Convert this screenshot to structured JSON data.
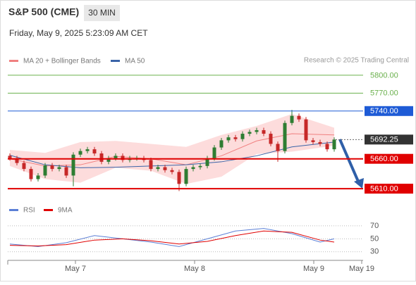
{
  "chart_data": {
    "type": "candlestick",
    "title": "S&P 500 (CME)",
    "interval": "30 MIN",
    "subtitle": "Friday, May 9, 2025 5:23:09 AM CET",
    "credit": "Research © 2025 Trading Central",
    "xlim": [
      -0.3,
      50.1
    ],
    "xticks": [
      {
        "value": 9.3,
        "label": "May 7"
      },
      {
        "value": 26.2,
        "label": "May 8"
      },
      {
        "value": 43.1,
        "label": "May 9"
      },
      {
        "value": 49.9,
        "label": "May 19"
      }
    ],
    "ylim": [
      5596,
      5814
    ],
    "up_color": "#2e7d32",
    "down_color": "#c62828",
    "candles": {
      "open": [
        5665,
        5661,
        5653,
        5643,
        5626,
        5632,
        5649,
        5643,
        5646,
        5632,
        5667,
        5673,
        5676,
        5669,
        5655,
        5661,
        5665,
        5658,
        5661,
        5661,
        5658,
        5643,
        5646,
        5641,
        5638,
        5618,
        5643,
        5646,
        5648,
        5661,
        5679,
        5691,
        5696,
        5693,
        5702,
        5705,
        5708,
        5702,
        5685,
        5673,
        5720,
        5732,
        5726,
        5691,
        5688,
        5685,
        5676
      ],
      "high": [
        5669,
        5665,
        5657,
        5647,
        5636,
        5653,
        5653,
        5650,
        5650,
        5671,
        5677,
        5680,
        5680,
        5673,
        5665,
        5669,
        5669,
        5665,
        5665,
        5665,
        5662,
        5650,
        5650,
        5645,
        5642,
        5647,
        5650,
        5652,
        5665,
        5683,
        5695,
        5700,
        5700,
        5706,
        5709,
        5712,
        5712,
        5706,
        5689,
        5724,
        5742,
        5736,
        5730,
        5695,
        5692,
        5689,
        5696
      ],
      "low": [
        5657,
        5649,
        5639,
        5622,
        5622,
        5628,
        5639,
        5639,
        5628,
        5614,
        5663,
        5669,
        5665,
        5651,
        5651,
        5657,
        5654,
        5654,
        5657,
        5654,
        5639,
        5639,
        5637,
        5634,
        5606,
        5614,
        5639,
        5642,
        5644,
        5657,
        5675,
        5687,
        5689,
        5689,
        5698,
        5701,
        5698,
        5681,
        5655,
        5669,
        5716,
        5722,
        5687,
        5684,
        5681,
        5672,
        5672
      ],
      "close": [
        5661,
        5653,
        5643,
        5626,
        5632,
        5649,
        5643,
        5646,
        5632,
        5667,
        5673,
        5676,
        5669,
        5655,
        5661,
        5665,
        5658,
        5661,
        5661,
        5658,
        5643,
        5646,
        5641,
        5638,
        5618,
        5643,
        5646,
        5648,
        5661,
        5679,
        5691,
        5696,
        5693,
        5702,
        5705,
        5708,
        5702,
        5685,
        5673,
        5720,
        5732,
        5726,
        5691,
        5688,
        5685,
        5676,
        5692.25
      ]
    },
    "indicators": {
      "x": [
        0,
        5,
        10,
        15,
        20,
        25,
        30,
        35,
        40,
        46
      ],
      "series": [
        {
          "name": "MA 20 + Bollinger Bands",
          "color": "#f08080",
          "values": [
            5660,
            5648,
            5650,
            5664,
            5660,
            5650,
            5665,
            5690,
            5702,
            5700
          ],
          "upper": [
            5675,
            5670,
            5688,
            5690,
            5685,
            5680,
            5700,
            5715,
            5735,
            5712
          ],
          "lower": [
            5648,
            5626,
            5620,
            5645,
            5640,
            5618,
            5630,
            5668,
            5672,
            5682
          ],
          "band_color": "#fddcdc"
        },
        {
          "name": "MA 50",
          "color": "#3a64a8",
          "values": [
            5666,
            5650,
            5645,
            5646,
            5648,
            5650,
            5655,
            5665,
            5680,
            5688
          ]
        }
      ]
    },
    "levels": [
      {
        "value": 5800,
        "label": "5800.00",
        "color": "#6ab04c",
        "boxed": false
      },
      {
        "value": 5770,
        "label": "5770.00",
        "color": "#6ab04c",
        "boxed": false
      },
      {
        "value": 5740,
        "label": "5740.00",
        "color": "#1e5bd6",
        "boxed": true
      },
      {
        "value": 5692.25,
        "label": "5692.25",
        "color": "#333333",
        "boxed": true,
        "dotted": true
      },
      {
        "value": 5660,
        "label": "5660.00",
        "color": "#e00000",
        "boxed": true
      },
      {
        "value": 5610,
        "label": "5610.00",
        "color": "#e00000",
        "boxed": true
      }
    ],
    "rsi": {
      "ylim": [
        20,
        80
      ],
      "yticks": [
        70,
        50,
        30
      ],
      "x": [
        0,
        4,
        8,
        12,
        16,
        20,
        24,
        28,
        32,
        36,
        40,
        44,
        46
      ],
      "series": [
        {
          "name": "RSI",
          "color": "#5b7fd6",
          "values": [
            42,
            38,
            44,
            55,
            50,
            45,
            38,
            50,
            62,
            66,
            58,
            45,
            50
          ]
        },
        {
          "name": "9MA",
          "color": "#e00000",
          "values": [
            40,
            39,
            41,
            48,
            50,
            47,
            42,
            46,
            55,
            62,
            60,
            48,
            45
          ]
        }
      ]
    }
  }
}
